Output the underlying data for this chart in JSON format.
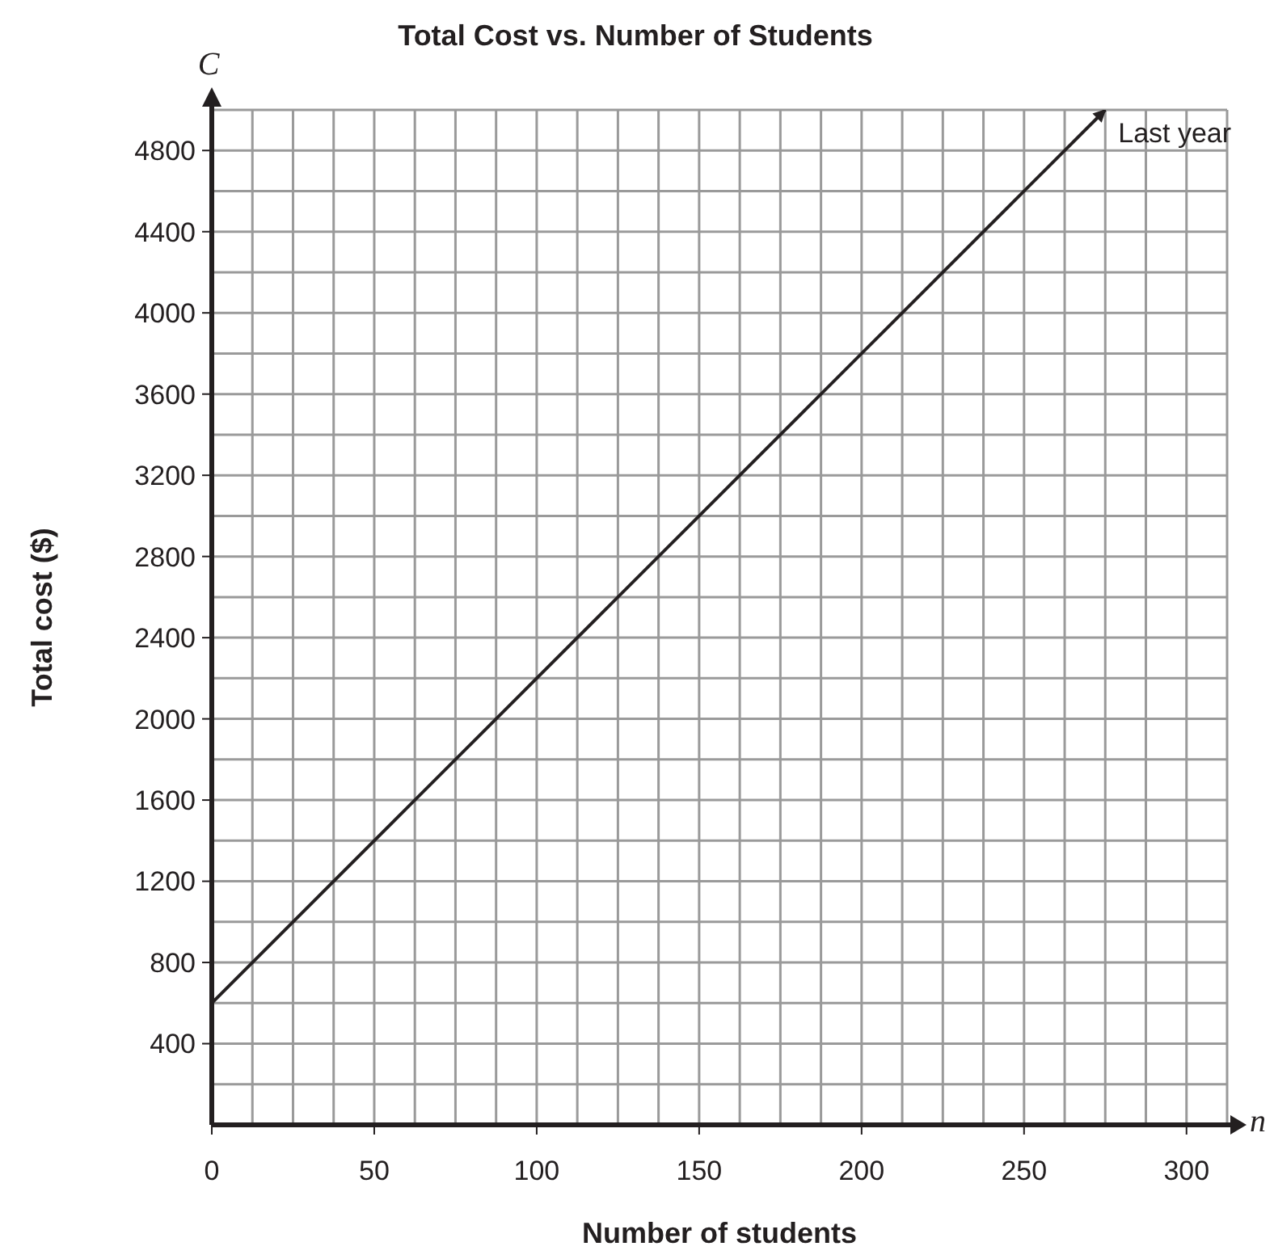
{
  "chart_data": {
    "type": "line",
    "title": "Total Cost vs. Number of Students",
    "xlabel": "Number of students",
    "ylabel": "Total cost ($)",
    "annotations": [
      "C",
      "n"
    ],
    "series": [
      {
        "name": "Last year",
        "color": "#231f20",
        "x": [
          0,
          275
        ],
        "values": [
          600,
          5000
        ]
      }
    ],
    "xlim": [
      0,
      312.5
    ],
    "ylim": [
      0,
      5000
    ],
    "xticks": [
      0,
      {
        "value": 12.5,
        "label": null
      },
      {
        "value": 25,
        "label": null
      },
      {
        "value": 37.5,
        "label": null
      },
      50,
      {
        "value": 62.5,
        "label": null
      },
      {
        "value": 75,
        "label": null
      },
      {
        "value": 87.5,
        "label": null
      },
      100,
      {
        "value": 112.5,
        "label": null
      },
      {
        "value": 125,
        "label": null
      },
      {
        "value": 137.5,
        "label": null
      },
      150,
      {
        "value": 162.5,
        "label": null
      },
      {
        "value": 175,
        "label": null
      },
      {
        "value": 187.5,
        "label": null
      },
      200,
      {
        "value": 212.5,
        "label": null
      },
      {
        "value": 225,
        "label": null
      },
      {
        "value": 237.5,
        "label": null
      },
      250,
      {
        "value": 262.5,
        "label": null
      },
      {
        "value": 275,
        "label": null
      },
      {
        "value": 287.5,
        "label": null
      },
      300,
      {
        "value": 312.5,
        "label": null
      }
    ],
    "yticks": [
      {
        "value": 0,
        "label": null
      },
      {
        "value": 200,
        "label": null
      },
      400,
      {
        "value": 600,
        "label": null
      },
      800,
      {
        "value": 1000,
        "label": null
      },
      1200,
      {
        "value": 1400,
        "label": null
      },
      1600,
      {
        "value": 1800,
        "label": null
      },
      2000,
      {
        "value": 2200,
        "label": null
      },
      2400,
      {
        "value": 2600,
        "label": null
      },
      2800,
      {
        "value": 3000,
        "label": null
      },
      3200,
      {
        "value": 3400,
        "label": null
      },
      3600,
      {
        "value": 3800,
        "label": null
      },
      4000,
      {
        "value": 4200,
        "label": null
      },
      4400,
      {
        "value": 4600,
        "label": null
      },
      4800,
      {
        "value": 5000,
        "label": null
      }
    ],
    "grid": true,
    "marker": "none",
    "line_style": "solid"
  }
}
